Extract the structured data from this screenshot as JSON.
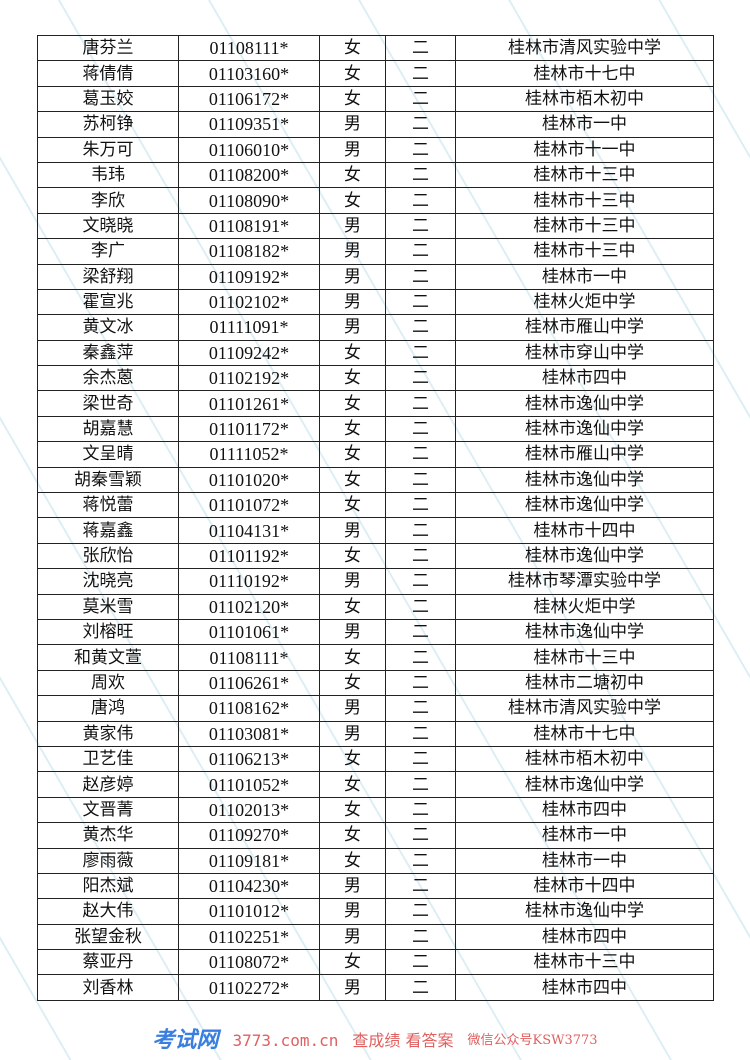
{
  "rows": [
    [
      "唐芬兰",
      "01108111*",
      "女",
      "二",
      "桂林市清风实验中学"
    ],
    [
      "蒋倩倩",
      "01103160*",
      "女",
      "二",
      "桂林市十七中"
    ],
    [
      "葛玉姣",
      "01106172*",
      "女",
      "二",
      "桂林市栢木初中"
    ],
    [
      "苏柯铮",
      "01109351*",
      "男",
      "二",
      "桂林市一中"
    ],
    [
      "朱万可",
      "01106010*",
      "男",
      "二",
      "桂林市十一中"
    ],
    [
      "韦玮",
      "01108200*",
      "女",
      "二",
      "桂林市十三中"
    ],
    [
      "李欣",
      "01108090*",
      "女",
      "二",
      "桂林市十三中"
    ],
    [
      "文晓晓",
      "01108191*",
      "男",
      "二",
      "桂林市十三中"
    ],
    [
      "李广",
      "01108182*",
      "男",
      "二",
      "桂林市十三中"
    ],
    [
      "梁舒翔",
      "01109192*",
      "男",
      "二",
      "桂林市一中"
    ],
    [
      "霍宣兆",
      "01102102*",
      "男",
      "二",
      "桂林火炬中学"
    ],
    [
      "黄文冰",
      "01111091*",
      "男",
      "二",
      "桂林市雁山中学"
    ],
    [
      "秦鑫萍",
      "01109242*",
      "女",
      "二",
      "桂林市穿山中学"
    ],
    [
      "余杰蒽",
      "01102192*",
      "女",
      "二",
      "桂林市四中"
    ],
    [
      "梁世奇",
      "01101261*",
      "女",
      "二",
      "桂林市逸仙中学"
    ],
    [
      "胡嘉慧",
      "01101172*",
      "女",
      "二",
      "桂林市逸仙中学"
    ],
    [
      "文呈晴",
      "01111052*",
      "女",
      "二",
      "桂林市雁山中学"
    ],
    [
      "胡秦雪颖",
      "01101020*",
      "女",
      "二",
      "桂林市逸仙中学"
    ],
    [
      "蒋悦蕾",
      "01101072*",
      "女",
      "二",
      "桂林市逸仙中学"
    ],
    [
      "蒋嘉鑫",
      "01104131*",
      "男",
      "二",
      "桂林市十四中"
    ],
    [
      "张欣怡",
      "01101192*",
      "女",
      "二",
      "桂林市逸仙中学"
    ],
    [
      "沈晓亮",
      "01110192*",
      "男",
      "二",
      "桂林市琴潭实验中学"
    ],
    [
      "莫米雪",
      "01102120*",
      "女",
      "二",
      "桂林火炬中学"
    ],
    [
      "刘榕旺",
      "01101061*",
      "男",
      "二",
      "桂林市逸仙中学"
    ],
    [
      "和黄文萱",
      "01108111*",
      "女",
      "二",
      "桂林市十三中"
    ],
    [
      "周欢",
      "01106261*",
      "女",
      "二",
      "桂林市二塘初中"
    ],
    [
      "唐鸿",
      "01108162*",
      "男",
      "二",
      "桂林市清风实验中学"
    ],
    [
      "黄家伟",
      "01103081*",
      "男",
      "二",
      "桂林市十七中"
    ],
    [
      "卫艺佳",
      "01106213*",
      "女",
      "二",
      "桂林市栢木初中"
    ],
    [
      "赵彦婷",
      "01101052*",
      "女",
      "二",
      "桂林市逸仙中学"
    ],
    [
      "文晋菁",
      "01102013*",
      "女",
      "二",
      "桂林市四中"
    ],
    [
      "黄杰华",
      "01109270*",
      "女",
      "二",
      "桂林市一中"
    ],
    [
      "廖雨薇",
      "01109181*",
      "女",
      "二",
      "桂林市一中"
    ],
    [
      "阳杰斌",
      "01104230*",
      "男",
      "二",
      "桂林市十四中"
    ],
    [
      "赵大伟",
      "01101012*",
      "男",
      "二",
      "桂林市逸仙中学"
    ],
    [
      "张望金秋",
      "01102251*",
      "男",
      "二",
      "桂林市四中"
    ],
    [
      "蔡亚丹",
      "01108072*",
      "女",
      "二",
      "桂林市十三中"
    ],
    [
      "刘香林",
      "01102272*",
      "男",
      "二",
      "桂林市四中"
    ]
  ],
  "watermark": {
    "logo": "考试网",
    "site": "3773.com.cn",
    "slogan": "查成绩 看答案",
    "wechat": "微信公众号KSW3773"
  }
}
